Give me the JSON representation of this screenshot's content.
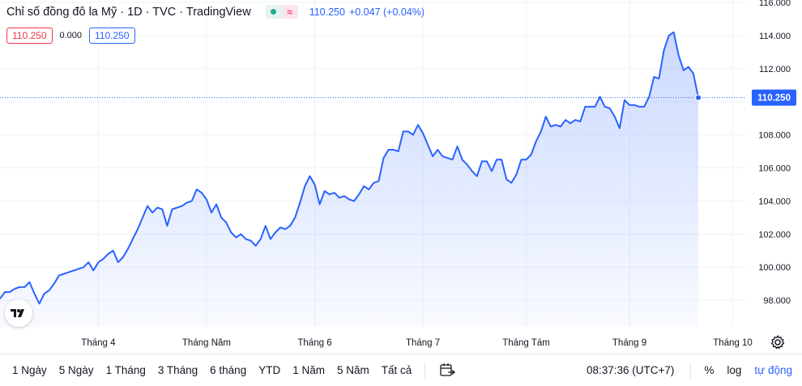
{
  "legend": {
    "title": "Chỉ số đồng đô la Mỹ · 1D · TVC · TradingView",
    "status_icon": "market-status-dot-icon",
    "approx_symbol": "≈",
    "last_value": "110.250",
    "change": "+0.047 (+0.04%)"
  },
  "price_boxes": {
    "sell": "110.250",
    "spread": "0.000",
    "buy": "110.250"
  },
  "price_tag": "110.250",
  "colors": {
    "line": "#2962ff",
    "accent": "#2962ff",
    "sell": "#f23645",
    "grid": "#f0f3fa"
  },
  "bottom": {
    "ranges": [
      "1 Ngày",
      "5 Ngày",
      "1 Tháng",
      "3 Tháng",
      "6 tháng",
      "YTD",
      "1 Năm",
      "5 Năm",
      "Tất cả"
    ],
    "range_icon": "calendar-range-icon",
    "time": "08:37:36 (UTC+7)",
    "percent": "%",
    "log": "log",
    "auto": "tự động"
  },
  "chart_data": {
    "type": "area",
    "x_tick_labels": [
      "Tháng 4",
      "Tháng Năm",
      "Tháng 6",
      "Tháng 7",
      "Tháng Tám",
      "Tháng 9",
      "Tháng 10"
    ],
    "y_tick_labels": [
      "98.000",
      "100.000",
      "102.000",
      "104.000",
      "106.000",
      "108.000",
      "110.000",
      "112.000",
      "114.000",
      "116.000"
    ],
    "ylim": [
      96.0,
      116.1
    ],
    "y_ticks": [
      98,
      100,
      102,
      104,
      106,
      108,
      110,
      112,
      114,
      116
    ],
    "x_ticks": [
      20,
      42,
      64,
      86,
      107,
      128,
      149
    ],
    "grid": true,
    "last_price": 110.25,
    "series": [
      {
        "values": [
          98.1,
          98.5,
          98.5,
          98.7,
          98.8,
          98.8,
          99.1,
          98.4,
          97.8,
          98.4,
          98.6,
          99.0,
          99.5,
          99.6,
          99.7,
          99.8,
          99.9,
          100.0,
          100.3,
          99.8,
          100.3,
          100.5,
          100.8,
          101.0,
          100.3,
          100.6,
          101.1,
          101.7,
          102.3,
          103.0,
          103.7,
          103.3,
          103.6,
          103.5,
          102.5,
          103.5,
          103.6,
          103.7,
          103.9,
          104.0,
          104.7,
          104.5,
          104.1,
          103.3,
          103.8,
          103.0,
          102.7,
          102.1,
          101.8,
          102.0,
          101.7,
          101.6,
          101.3,
          101.7,
          102.5,
          101.7,
          102.1,
          102.4,
          102.3,
          102.5,
          103.0,
          103.9,
          104.9,
          105.5,
          105.0,
          103.8,
          104.6,
          104.4,
          104.5,
          104.2,
          104.3,
          104.1,
          104.0,
          104.4,
          104.9,
          104.7,
          105.1,
          105.2,
          106.6,
          107.1,
          107.1,
          107.0,
          108.2,
          108.2,
          108.0,
          108.6,
          108.1,
          107.4,
          106.7,
          107.1,
          106.7,
          106.6,
          106.5,
          107.3,
          106.5,
          106.2,
          105.8,
          105.5,
          106.4,
          106.4,
          105.8,
          106.5,
          106.5,
          105.3,
          105.1,
          105.6,
          106.5,
          106.5,
          106.8,
          107.6,
          108.2,
          109.1,
          108.5,
          108.6,
          108.5,
          108.9,
          108.7,
          108.9,
          108.8,
          109.7,
          109.7,
          109.7,
          110.3,
          109.7,
          109.6,
          109.1,
          108.4,
          110.1,
          109.8,
          109.8,
          109.7,
          109.7,
          110.3,
          111.5,
          111.4,
          113.1,
          114.0,
          114.2,
          112.8,
          111.9,
          112.1,
          111.7,
          110.25
        ]
      }
    ]
  }
}
